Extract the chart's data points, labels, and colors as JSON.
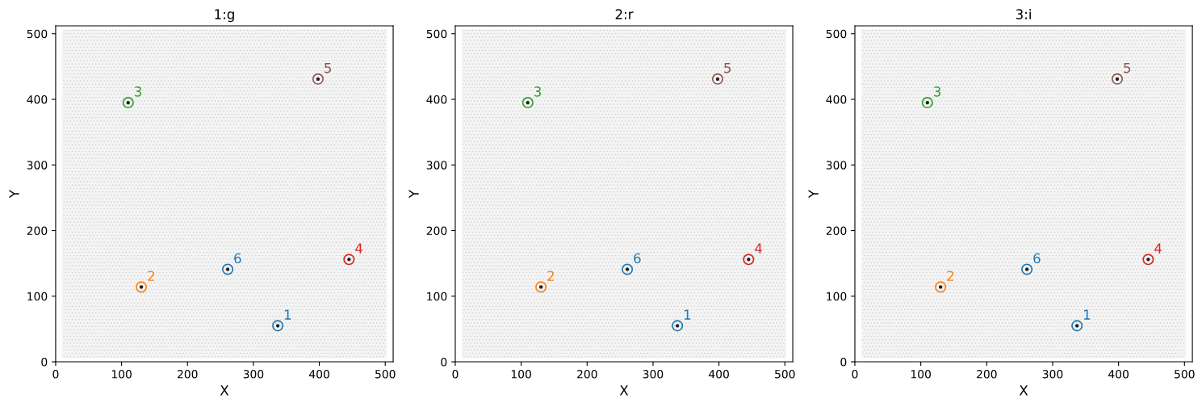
{
  "chart_data": [
    {
      "type": "scatter",
      "title": "1:g",
      "xlabel": "X",
      "ylabel": "Y",
      "xlim": [
        0,
        512
      ],
      "ylim": [
        0,
        512
      ],
      "xticks": [
        0,
        100,
        200,
        300,
        400,
        500
      ],
      "yticks": [
        0,
        100,
        200,
        300,
        400,
        500
      ],
      "marker": "circle",
      "series": [
        {
          "name": "1",
          "color": "#1f77b4",
          "x": [
            337
          ],
          "values": [
            55
          ]
        },
        {
          "name": "2",
          "color": "#ff7f0e",
          "x": [
            130
          ],
          "values": [
            114
          ]
        },
        {
          "name": "3",
          "color": "#2ca02c",
          "x": [
            110
          ],
          "values": [
            395
          ]
        },
        {
          "name": "4",
          "color": "#d62728",
          "x": [
            445
          ],
          "values": [
            156
          ]
        },
        {
          "name": "5",
          "color": "#8c564b",
          "x": [
            398
          ],
          "values": [
            431
          ]
        },
        {
          "name": "6",
          "color": "#1f77b4",
          "x": [
            261
          ],
          "values": [
            141
          ]
        }
      ]
    },
    {
      "type": "scatter",
      "title": "2:r",
      "xlabel": "X",
      "ylabel": "Y",
      "xlim": [
        0,
        512
      ],
      "ylim": [
        0,
        512
      ],
      "xticks": [
        0,
        100,
        200,
        300,
        400,
        500
      ],
      "yticks": [
        0,
        100,
        200,
        300,
        400,
        500
      ],
      "marker": "circle",
      "series": [
        {
          "name": "1",
          "color": "#1f77b4",
          "x": [
            337
          ],
          "values": [
            55
          ]
        },
        {
          "name": "2",
          "color": "#ff7f0e",
          "x": [
            130
          ],
          "values": [
            114
          ]
        },
        {
          "name": "3",
          "color": "#2ca02c",
          "x": [
            110
          ],
          "values": [
            395
          ]
        },
        {
          "name": "4",
          "color": "#d62728",
          "x": [
            445
          ],
          "values": [
            156
          ]
        },
        {
          "name": "5",
          "color": "#8c564b",
          "x": [
            398
          ],
          "values": [
            431
          ]
        },
        {
          "name": "6",
          "color": "#1f77b4",
          "x": [
            261
          ],
          "values": [
            141
          ]
        }
      ]
    },
    {
      "type": "scatter",
      "title": "3:i",
      "xlabel": "X",
      "ylabel": "Y",
      "xlim": [
        0,
        512
      ],
      "ylim": [
        0,
        512
      ],
      "xticks": [
        0,
        100,
        200,
        300,
        400,
        500
      ],
      "yticks": [
        0,
        100,
        200,
        300,
        400,
        500
      ],
      "marker": "circle",
      "series": [
        {
          "name": "1",
          "color": "#1f77b4",
          "x": [
            337
          ],
          "values": [
            55
          ]
        },
        {
          "name": "2",
          "color": "#ff7f0e",
          "x": [
            130
          ],
          "values": [
            114
          ]
        },
        {
          "name": "3",
          "color": "#2ca02c",
          "x": [
            110
          ],
          "values": [
            395
          ]
        },
        {
          "name": "4",
          "color": "#d62728",
          "x": [
            445
          ],
          "values": [
            156
          ]
        },
        {
          "name": "5",
          "color": "#8c564b",
          "x": [
            398
          ],
          "values": [
            431
          ]
        },
        {
          "name": "6",
          "color": "#1f77b4",
          "x": [
            261
          ],
          "values": [
            141
          ]
        }
      ]
    }
  ]
}
